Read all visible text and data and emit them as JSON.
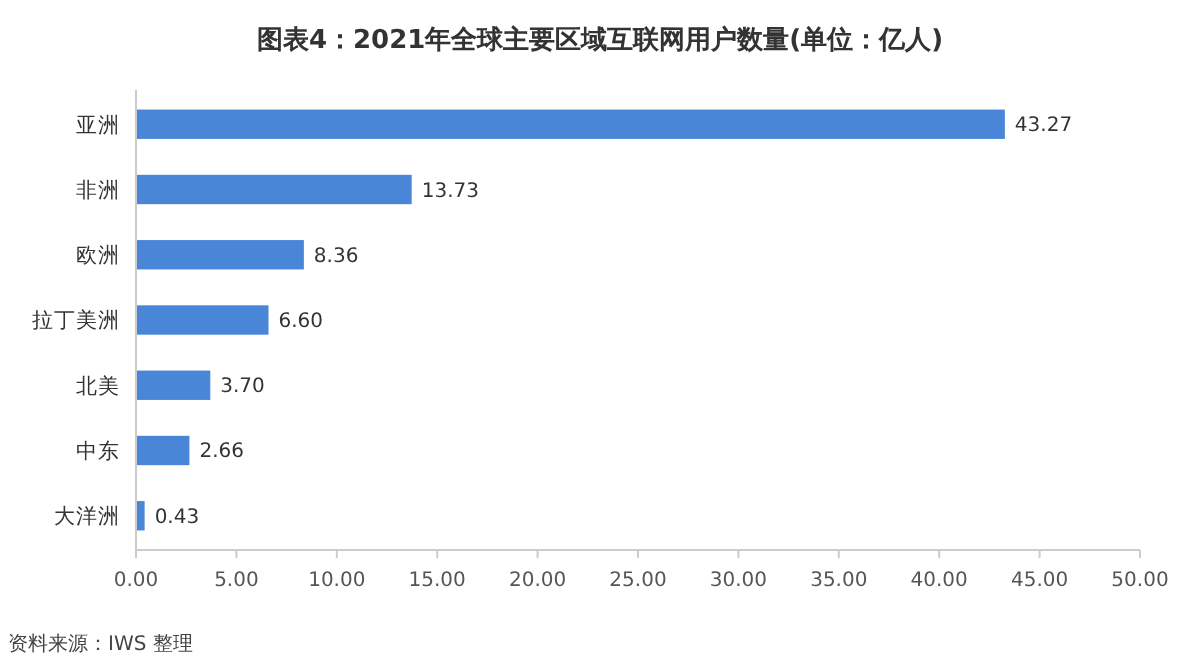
{
  "chart_data": {
    "type": "bar",
    "orientation": "horizontal",
    "title": "图表4：2021年全球主要区域互联网用户数量(单位：亿人)",
    "categories": [
      "亚洲",
      "非洲",
      "欧洲",
      "拉丁美洲",
      "北美",
      "中东",
      "大洋洲"
    ],
    "values": [
      43.27,
      13.73,
      8.36,
      6.6,
      3.7,
      2.66,
      0.43
    ],
    "value_labels": [
      "43.27",
      "13.73",
      "8.36",
      "6.60",
      "3.70",
      "2.66",
      "0.43"
    ],
    "color": "#4a86d8",
    "xlim": [
      0,
      50
    ],
    "xticks": [
      {
        "value": 0,
        "label": "0.00"
      },
      {
        "value": 5,
        "label": "5.00"
      },
      {
        "value": 10,
        "label": "10.00"
      },
      {
        "value": 15,
        "label": "15.00"
      },
      {
        "value": 20,
        "label": "20.00"
      },
      {
        "value": 25,
        "label": "25.00"
      },
      {
        "value": 30,
        "label": "30.00"
      },
      {
        "value": 35,
        "label": "35.00"
      },
      {
        "value": 40,
        "label": "40.00"
      },
      {
        "value": 45,
        "label": "45.00"
      },
      {
        "value": 50,
        "label": "50.00"
      }
    ],
    "grid": false,
    "annotations": [
      "资料来源：IWS 整理"
    ]
  }
}
